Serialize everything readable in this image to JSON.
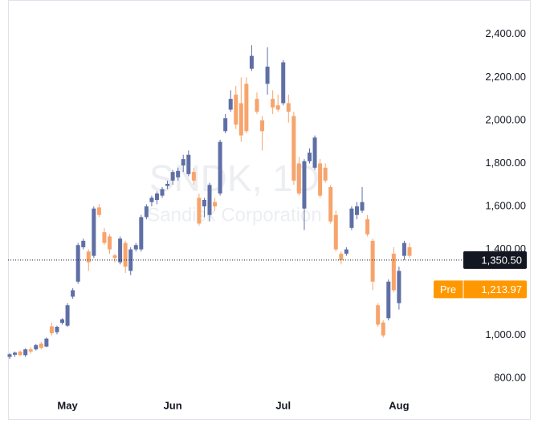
{
  "chart_data": {
    "type": "candlestick",
    "watermark": {
      "symbol": "SNDK, 1D",
      "name": "Sandisk Corporation"
    },
    "categories": [
      null,
      null,
      null,
      null,
      null,
      null,
      null,
      null,
      null,
      null,
      null,
      "May",
      null,
      null,
      null,
      null,
      null,
      null,
      null,
      null,
      null,
      null,
      null,
      null,
      null,
      null,
      null,
      null,
      null,
      null,
      null,
      "Jun",
      null,
      null,
      null,
      null,
      null,
      null,
      null,
      null,
      null,
      null,
      null,
      null,
      null,
      null,
      null,
      null,
      null,
      null,
      null,
      null,
      "Jul",
      null,
      null,
      null,
      null,
      null,
      null,
      null,
      null,
      null,
      null,
      null,
      null,
      null,
      null,
      null,
      null,
      null,
      null,
      null,
      null,
      null,
      "Aug",
      null,
      null
    ],
    "open": [
      900,
      910,
      925,
      908,
      935,
      935,
      962,
      948,
      1042,
      1015,
      1058,
      1045,
      1180,
      1250,
      1410,
      1390,
      1370,
      1595,
      1480,
      1460,
      1372,
      1340,
      1430,
      1300,
      1400,
      1400,
      1550,
      1620,
      1630,
      1650,
      1695,
      1720,
      1735,
      1790,
      1750,
      1760,
      1640,
      1600,
      1560,
      1620,
      1660,
      1950,
      2050,
      2120,
      2080,
      2170,
      2240,
      2100,
      2000,
      2170,
      2100,
      2070,
      2080,
      2080,
      2020,
      1800,
      1590,
      1810,
      1780,
      1800,
      1780,
      1690,
      1560,
      1380,
      1380,
      1500,
      1560,
      1580,
      1540,
      1440,
      1140,
      1060,
      1080,
      1380,
      1150,
      1370,
      1410
    ],
    "high": [
      918,
      925,
      930,
      940,
      945,
      960,
      970,
      990,
      1060,
      1045,
      1080,
      1150,
      1220,
      1430,
      1450,
      1400,
      1600,
      1610,
      1500,
      1470,
      1380,
      1460,
      1440,
      1410,
      1430,
      1560,
      1610,
      1650,
      1670,
      1690,
      1720,
      1770,
      1780,
      1840,
      1860,
      1780,
      1660,
      1640,
      1710,
      1640,
      1910,
      2030,
      2140,
      2160,
      2200,
      2200,
      2350,
      2130,
      2020,
      2340,
      2140,
      2120,
      2280,
      2120,
      2040,
      1830,
      1820,
      1870,
      1930,
      1820,
      1800,
      1700,
      1580,
      1390,
      1410,
      1600,
      1620,
      1690,
      1560,
      1450,
      1150,
      1070,
      1260,
      1410,
      1320,
      1440,
      1430
    ],
    "low": [
      890,
      900,
      905,
      900,
      915,
      930,
      935,
      945,
      1000,
      1005,
      1050,
      1040,
      1170,
      1240,
      1400,
      1300,
      1360,
      1550,
      1420,
      1380,
      1340,
      1330,
      1290,
      1280,
      1390,
      1390,
      1540,
      1600,
      1610,
      1640,
      1680,
      1700,
      1720,
      1760,
      1740,
      1700,
      1510,
      1550,
      1530,
      1580,
      1650,
      1940,
      2040,
      1960,
      1900,
      1940,
      2230,
      2030,
      1860,
      2120,
      2030,
      2040,
      2070,
      1990,
      1700,
      1650,
      1490,
      1800,
      1770,
      1640,
      1710,
      1520,
      1390,
      1330,
      1370,
      1490,
      1540,
      1570,
      1460,
      1210,
      1040,
      990,
      1070,
      1200,
      1120,
      1350,
      1360
    ],
    "close": [
      912,
      920,
      908,
      935,
      925,
      955,
      942,
      985,
      1010,
      1040,
      1075,
      1140,
      1210,
      1420,
      1440,
      1340,
      1590,
      1560,
      1430,
      1400,
      1360,
      1450,
      1320,
      1400,
      1420,
      1550,
      1600,
      1640,
      1660,
      1680,
      1705,
      1760,
      1765,
      1820,
      1840,
      1720,
      1520,
      1630,
      1700,
      1600,
      1900,
      2010,
      2100,
      1980,
      1930,
      1950,
      2300,
      2040,
      1950,
      2250,
      2060,
      2050,
      2270,
      2040,
      1720,
      1660,
      1810,
      1850,
      1920,
      1650,
      1720,
      1530,
      1400,
      1350,
      1400,
      1590,
      1600,
      1620,
      1470,
      1250,
      1050,
      1000,
      1250,
      1210,
      1300,
      1430,
      1370
    ],
    "up_color": "#5f6fa6",
    "down_color": "#f7a46c",
    "ylim": [
      730,
      2530
    ],
    "yticks": [
      {
        "value": 800,
        "label": "800.00"
      },
      {
        "value": 1000,
        "label": "1,000.00"
      },
      {
        "value": 1400,
        "label": "1,400.00"
      },
      {
        "value": 1600,
        "label": "1,600.00"
      },
      {
        "value": 1800,
        "label": "1,800.00"
      },
      {
        "value": 2000,
        "label": "2,000.00"
      },
      {
        "value": 2200,
        "label": "2,200.00"
      },
      {
        "value": 2400,
        "label": "2,400.00"
      }
    ],
    "price_line": {
      "value": 1350.5,
      "label": "1,350.50"
    },
    "premarket": {
      "name": "Pre",
      "value": 1213.97,
      "label": "1,213.97"
    }
  }
}
